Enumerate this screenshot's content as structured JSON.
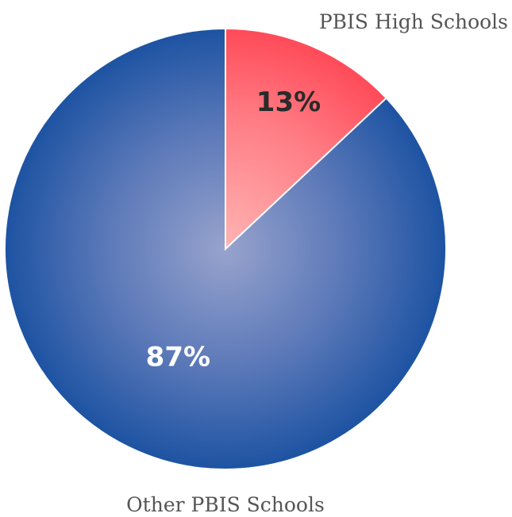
{
  "chart_data": {
    "type": "pie",
    "slices": [
      {
        "name": "PBIS High Schools",
        "value": 13,
        "label": "13%",
        "color": "#ff5a64",
        "label_color": "#2a2a2a"
      },
      {
        "name": "Other PBIS Schools",
        "value": 87,
        "label": "87%",
        "color": "#1d53a2",
        "label_color": "#ffffff"
      }
    ],
    "start_angle_degrees": 0,
    "direction": "clockwise"
  }
}
